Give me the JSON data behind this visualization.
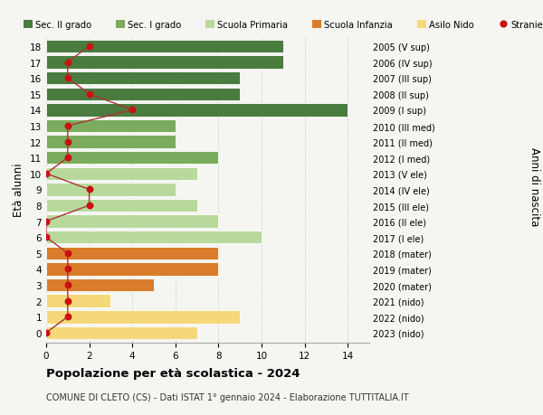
{
  "ages": [
    18,
    17,
    16,
    15,
    14,
    13,
    12,
    11,
    10,
    9,
    8,
    7,
    6,
    5,
    4,
    3,
    2,
    1,
    0
  ],
  "right_labels": [
    "2005 (V sup)",
    "2006 (IV sup)",
    "2007 (III sup)",
    "2008 (II sup)",
    "2009 (I sup)",
    "2010 (III med)",
    "2011 (II med)",
    "2012 (I med)",
    "2013 (V ele)",
    "2014 (IV ele)",
    "2015 (III ele)",
    "2016 (II ele)",
    "2017 (I ele)",
    "2018 (mater)",
    "2019 (mater)",
    "2020 (mater)",
    "2021 (nido)",
    "2022 (nido)",
    "2023 (nido)"
  ],
  "bar_values": [
    11,
    11,
    9,
    9,
    14,
    6,
    6,
    8,
    7,
    6,
    7,
    8,
    10,
    8,
    8,
    5,
    3,
    9,
    7
  ],
  "stranieri_values": [
    2,
    1,
    1,
    2,
    4,
    1,
    1,
    1,
    0,
    2,
    2,
    0,
    0,
    1,
    1,
    1,
    1,
    1,
    0
  ],
  "bar_colors": [
    "#4a7c3f",
    "#4a7c3f",
    "#4a7c3f",
    "#4a7c3f",
    "#4a7c3f",
    "#7aab5e",
    "#7aab5e",
    "#7aab5e",
    "#b8d99c",
    "#b8d99c",
    "#b8d99c",
    "#b8d99c",
    "#b8d99c",
    "#d97c2b",
    "#d97c2b",
    "#d97c2b",
    "#f5d87a",
    "#f5d87a",
    "#f5d87a"
  ],
  "legend_labels": [
    "Sec. II grado",
    "Sec. I grado",
    "Scuola Primaria",
    "Scuola Infanzia",
    "Asilo Nido",
    "Stranieri"
  ],
  "legend_colors": [
    "#4a7c3f",
    "#7aab5e",
    "#b8d99c",
    "#d97c2b",
    "#f5d87a",
    "#cc1111"
  ],
  "title": "Popolazione per età scolastica - 2024",
  "subtitle": "COMUNE DI CLETO (CS) - Dati ISTAT 1° gennaio 2024 - Elaborazione TUTTITALIA.IT",
  "ylabel": "Età alunni",
  "right_ylabel": "Anni di nascita",
  "xlim": [
    0,
    15
  ],
  "xticks": [
    0,
    2,
    4,
    6,
    8,
    10,
    12,
    14
  ],
  "background_color": "#f5f5f2",
  "bar_height": 0.82,
  "stranieri_color": "#cc1111",
  "line_color": "#aa3333",
  "ylim_bottom": -0.6,
  "ylim_top": 18.6
}
